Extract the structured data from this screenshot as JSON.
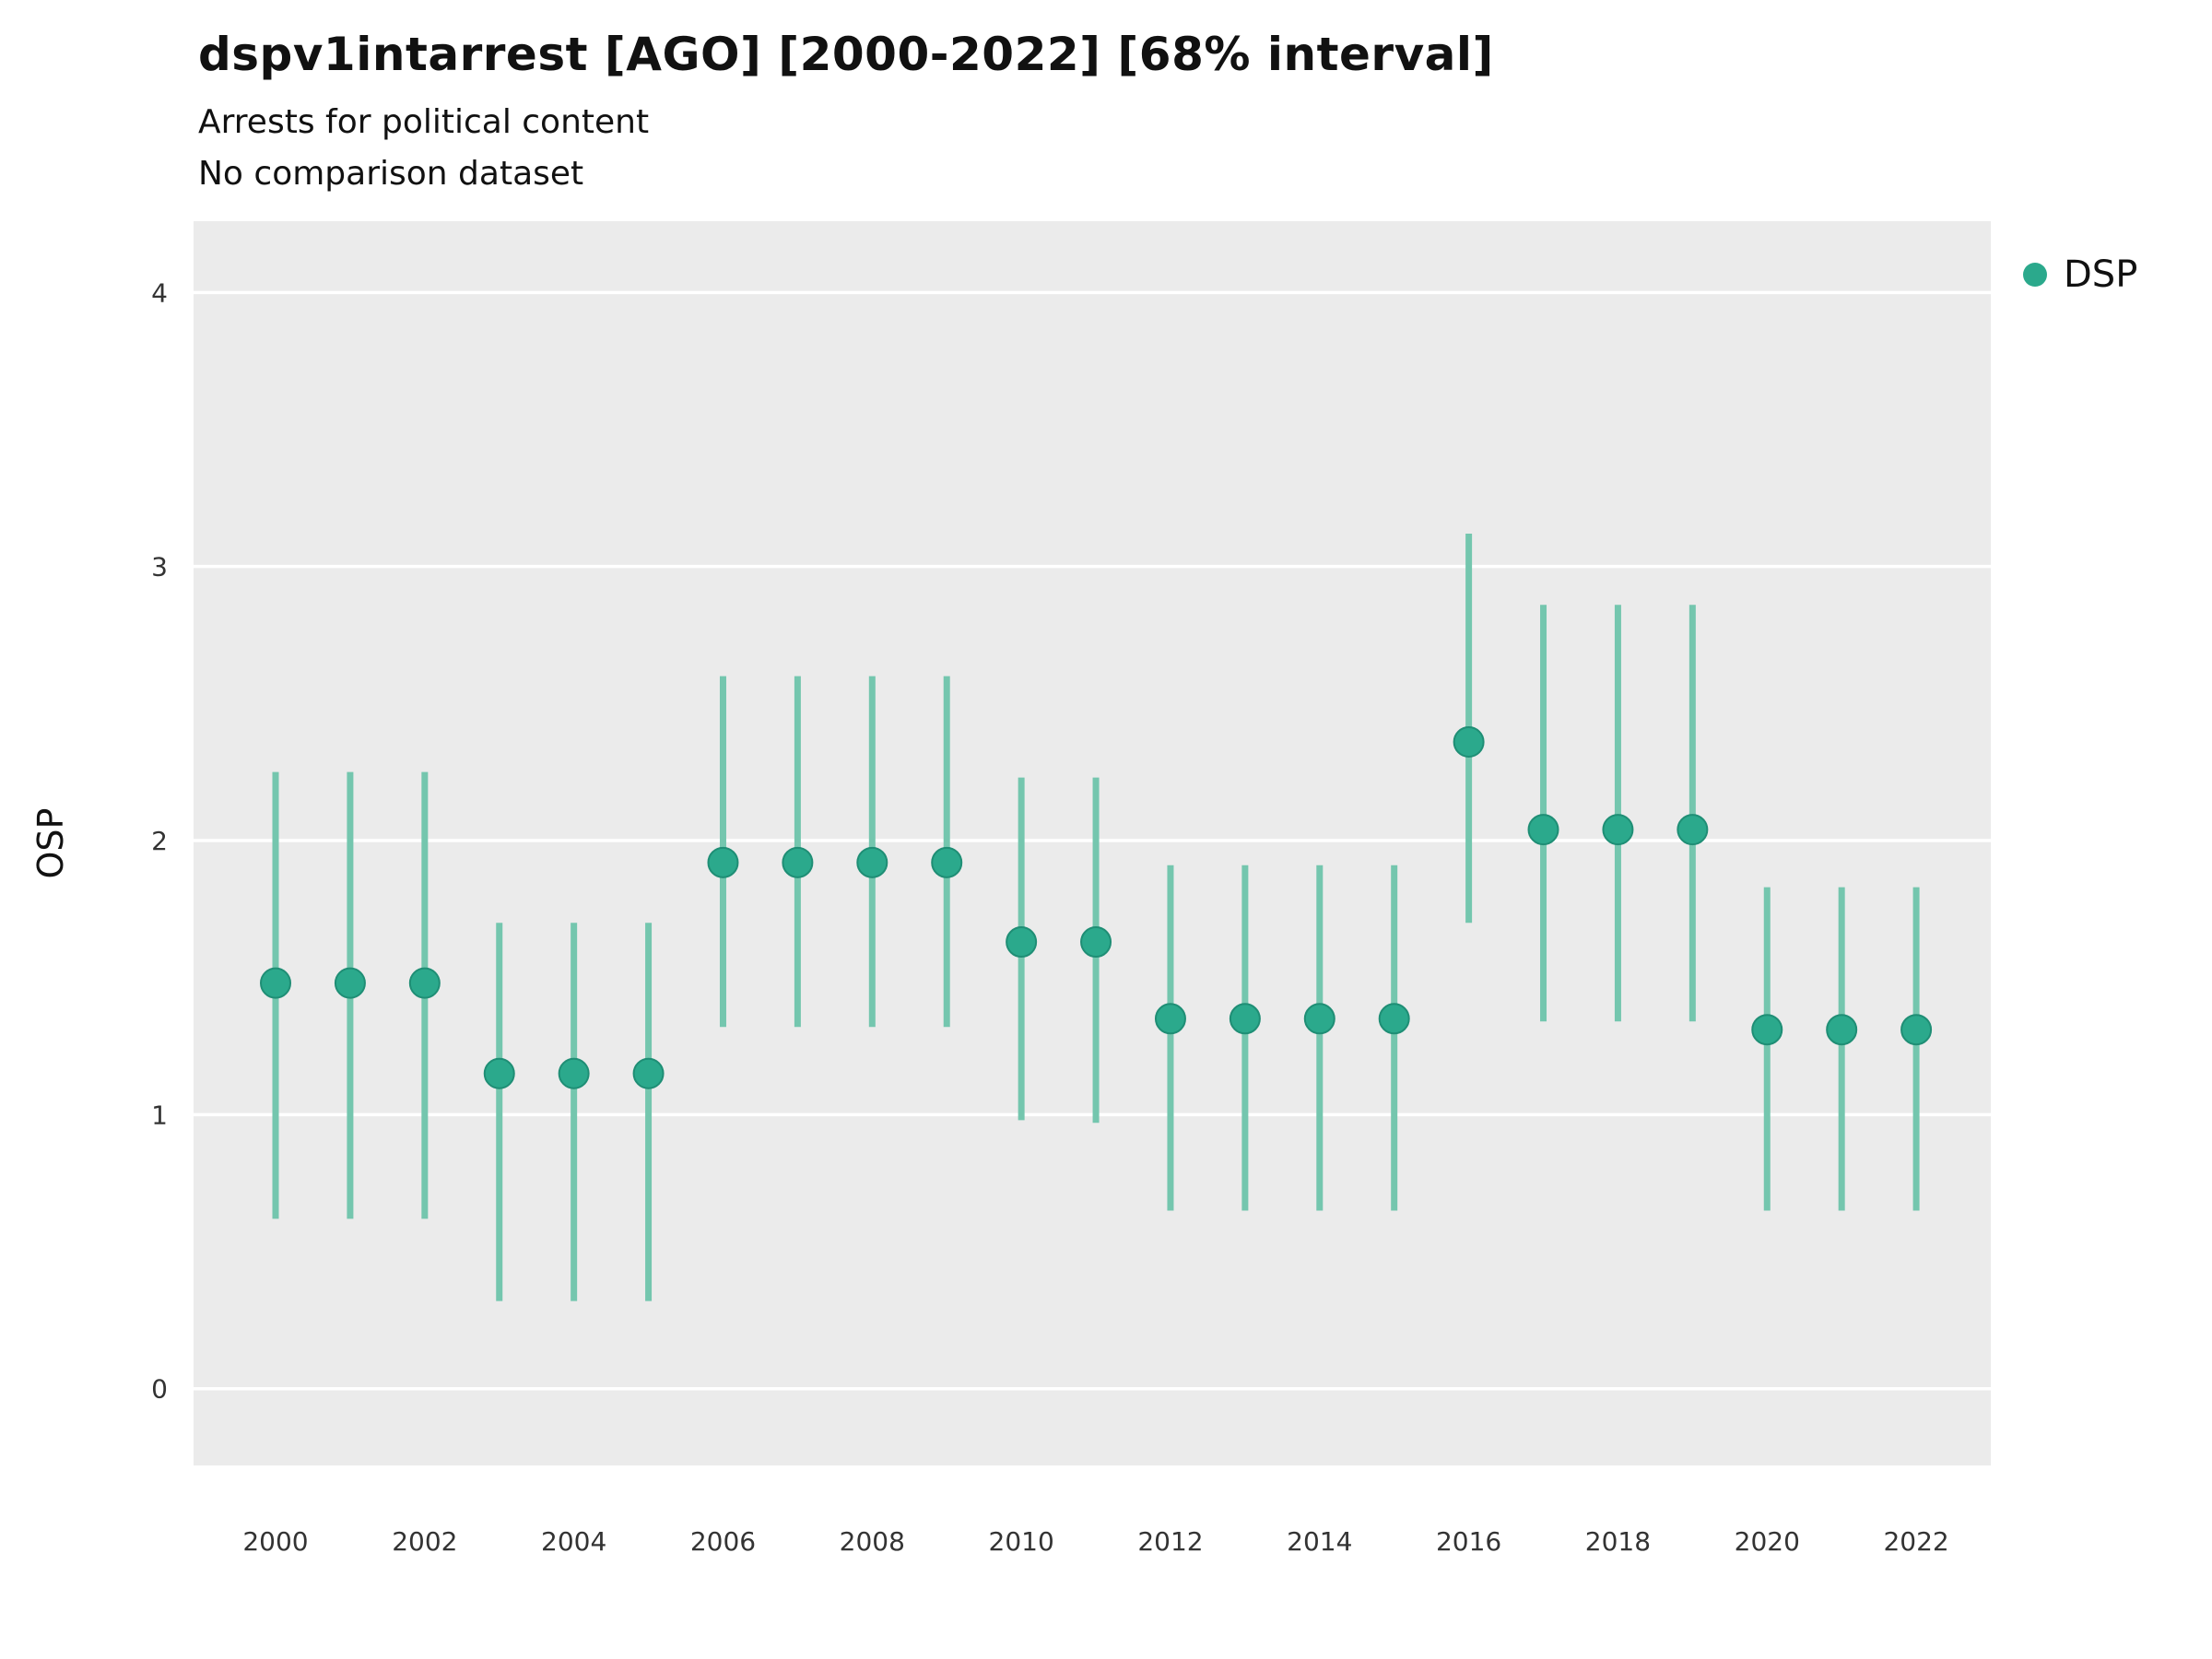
{
  "chart_data": {
    "type": "scatter",
    "title": "dspv1intarrest [AGO] [2000-2022] [68% interval]",
    "subtitle": "Arrests for political content",
    "subtitle2": "No comparison dataset",
    "ylabel": "OSP",
    "xlabel": "",
    "ylim": [
      -0.28,
      4.26
    ],
    "xlim": [
      1998.9,
      2023.0
    ],
    "yticks": [
      0,
      1,
      2,
      3,
      4
    ],
    "xticks": [
      2000,
      2002,
      2004,
      2006,
      2008,
      2010,
      2012,
      2014,
      2016,
      2018,
      2020,
      2022
    ],
    "grid": "horizontal-major-white",
    "panel_color": "#EBEBEB",
    "gridline_color": "#FFFFFF",
    "point_color": "#2BA98C",
    "point_edge_color": "#1F8E75",
    "errorbar_color": "#74C6AE",
    "legend_position": "right",
    "legend": [
      {
        "label": "DSP",
        "color": "#2BA98C"
      }
    ],
    "series": [
      {
        "name": "DSP",
        "points": [
          {
            "x": 2000,
            "y": 1.48,
            "lo": 0.62,
            "hi": 2.25
          },
          {
            "x": 2001,
            "y": 1.48,
            "lo": 0.62,
            "hi": 2.25
          },
          {
            "x": 2002,
            "y": 1.48,
            "lo": 0.62,
            "hi": 2.25
          },
          {
            "x": 2003,
            "y": 1.15,
            "lo": 0.32,
            "hi": 1.7
          },
          {
            "x": 2004,
            "y": 1.15,
            "lo": 0.32,
            "hi": 1.7
          },
          {
            "x": 2005,
            "y": 1.15,
            "lo": 0.32,
            "hi": 1.7
          },
          {
            "x": 2006,
            "y": 1.92,
            "lo": 1.32,
            "hi": 2.6
          },
          {
            "x": 2007,
            "y": 1.92,
            "lo": 1.32,
            "hi": 2.6
          },
          {
            "x": 2008,
            "y": 1.92,
            "lo": 1.32,
            "hi": 2.6
          },
          {
            "x": 2009,
            "y": 1.92,
            "lo": 1.32,
            "hi": 2.6
          },
          {
            "x": 2010,
            "y": 1.63,
            "lo": 0.98,
            "hi": 2.23
          },
          {
            "x": 2011,
            "y": 1.63,
            "lo": 0.97,
            "hi": 2.23
          },
          {
            "x": 2012,
            "y": 1.35,
            "lo": 0.65,
            "hi": 1.91
          },
          {
            "x": 2013,
            "y": 1.35,
            "lo": 0.65,
            "hi": 1.91
          },
          {
            "x": 2014,
            "y": 1.35,
            "lo": 0.65,
            "hi": 1.91
          },
          {
            "x": 2015,
            "y": 1.35,
            "lo": 0.65,
            "hi": 1.91
          },
          {
            "x": 2016,
            "y": 2.36,
            "lo": 1.7,
            "hi": 3.12
          },
          {
            "x": 2017,
            "y": 2.04,
            "lo": 1.34,
            "hi": 2.86
          },
          {
            "x": 2018,
            "y": 2.04,
            "lo": 1.34,
            "hi": 2.86
          },
          {
            "x": 2019,
            "y": 2.04,
            "lo": 1.34,
            "hi": 2.86
          },
          {
            "x": 2020,
            "y": 1.31,
            "lo": 0.65,
            "hi": 1.83
          },
          {
            "x": 2021,
            "y": 1.31,
            "lo": 0.65,
            "hi": 1.83
          },
          {
            "x": 2022,
            "y": 1.31,
            "lo": 0.65,
            "hi": 1.83
          }
        ]
      }
    ]
  }
}
